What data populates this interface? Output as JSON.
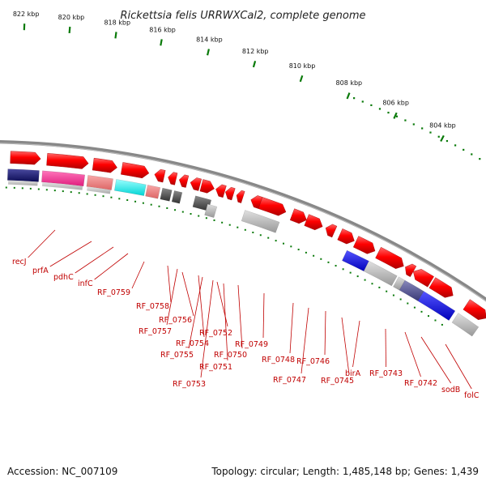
{
  "title": "Rickettsia felis URRWXCal2, complete genome",
  "accession": "Accession: NC_007109",
  "summary": "Topology: circular; Length: 1,485,148 bp; Genes: 1,439",
  "scale_ticks": [
    "822 kbp",
    "820 kbp",
    "818 kbp",
    "816 kbp",
    "814 kbp",
    "812 kbp",
    "810 kbp",
    "808 kbp",
    "806 kbp",
    "804 kbp"
  ],
  "gene_labels": [
    "recJ",
    "prfA",
    "pdhC",
    "infC",
    "RF_0759",
    "RF_0758",
    "RF_0757",
    "RF_0756",
    "RF_0755",
    "RF_0754",
    "RF_0753",
    "RF_0752",
    "RF_0751",
    "RF_0750",
    "RF_0749",
    "RF_0748",
    "RF_0747",
    "RF_0746",
    "RF_0745",
    "birA",
    "RF_0743",
    "RF_0742",
    "sodB",
    "folC"
  ],
  "colors": {
    "gene_red": "#ff0000",
    "label_red": "#c00000",
    "backbone": "#888888",
    "tick_green": "#0a7a0a",
    "cog_navy": "#1a1a7a",
    "cog_magenta": "#ff3399",
    "cog_salmon": "#f08080",
    "cog_cyan": "#00ffff",
    "cog_gray": "#bbbbbb",
    "cog_darkgray": "#555555",
    "cog_blue": "#0000ee",
    "cog_slate": "#555599"
  }
}
